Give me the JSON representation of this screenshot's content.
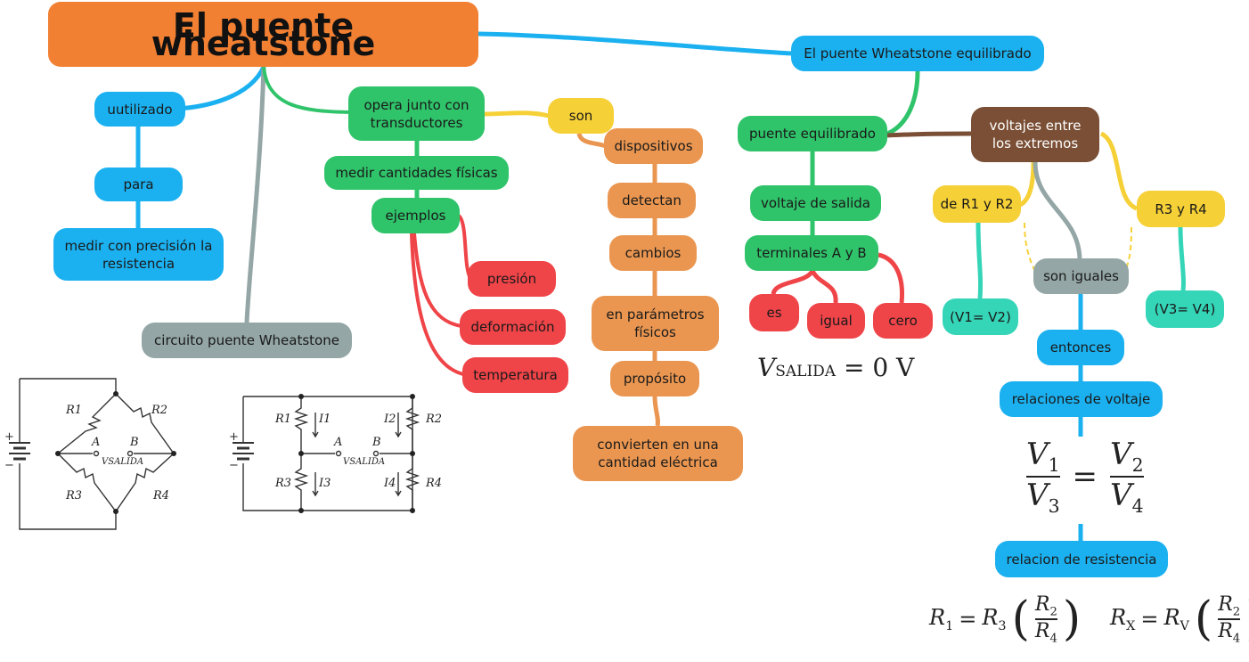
{
  "title": "El puente wheatstone",
  "branch_left": {
    "utilizado": "uutilizado",
    "para": "para",
    "medir_precision": "medir con precisión la resistencia",
    "circuito": "circuito puente Wheatstone"
  },
  "branch_transductores": {
    "opera": "opera junto con transductores",
    "medir_cantidades": "medir cantidades físicas",
    "ejemplos": "ejemplos",
    "presion": "presión",
    "deformacion": "deformación",
    "temperatura": "temperatura"
  },
  "branch_son": {
    "son": "son",
    "dispositivos": "dispositivos",
    "detectan": "detectan",
    "cambios": "cambios",
    "parametros": "en parámetros físicos",
    "proposito": "propósito",
    "convierten": "convierten en una cantidad eléctrica"
  },
  "branch_equilibrado": {
    "header": "El puente Wheatstone equilibrado",
    "puente_equilibrado": "puente equilibrado",
    "voltaje_salida": "voltaje de salida",
    "terminales": "terminales A y B",
    "es": "es",
    "igual": "igual",
    "cero": "cero",
    "voltajes_extremos": "voltajes entre los extremos",
    "r1r2": "de R1 y R2",
    "r3r4": "R3 y R4",
    "v1v2": "(V1= V2)",
    "v3v4": "(V3= V4)",
    "son_iguales": "son iguales",
    "entonces": "entonces",
    "relaciones_voltaje": "relaciones de voltaje",
    "relacion_resistencia": "relacion de resistencia"
  },
  "formulas": {
    "vsalida_v": "V",
    "vsalida_sub": "SALIDA",
    "vsalida_rest": "= 0 V",
    "v1": "V",
    "v1_sub": "1",
    "v3": "V",
    "v3_sub": "3",
    "v2": "V",
    "v2_sub": "2",
    "v4": "V",
    "v4_sub": "4",
    "eq": "=",
    "r1_lhs": "R",
    "r1_lhs_sub": "1",
    "r3": "R",
    "r3_sub": "3",
    "r2": "R",
    "r2_sub": "2",
    "r4": "R",
    "r4_sub": "4",
    "rx_lhs": "R",
    "rx_lhs_sub": "X",
    "rv": "R",
    "rv_sub": "V",
    "rx_r2": "R",
    "rx_r2_sub": "2",
    "rx_r4": "R",
    "rx_r4_sub": "4"
  },
  "circuit1": {
    "r1": "R1",
    "r2": "R2",
    "r3": "R3",
    "r4": "R4",
    "a": "A",
    "b": "B",
    "vsalida": "VSALIDA",
    "plus": "+",
    "minus": "−"
  },
  "circuit2": {
    "r1": "R1",
    "r2": "R2",
    "r3": "R3",
    "r4": "R4",
    "i1": "I1",
    "i2": "I2",
    "i3": "I3",
    "i4": "I4",
    "a": "A",
    "b": "B",
    "vsalida": "VSALIDA",
    "plus": "+",
    "minus": "−"
  },
  "colors": {
    "root": "#f28033",
    "blue": "#1bb1f0",
    "green": "#2fc36a",
    "grey": "#94a6a5",
    "orange": "#ea9650",
    "yellow": "#f6d037",
    "red": "#ef4448",
    "brown": "#7a4f35",
    "teal": "#35d5b8"
  }
}
